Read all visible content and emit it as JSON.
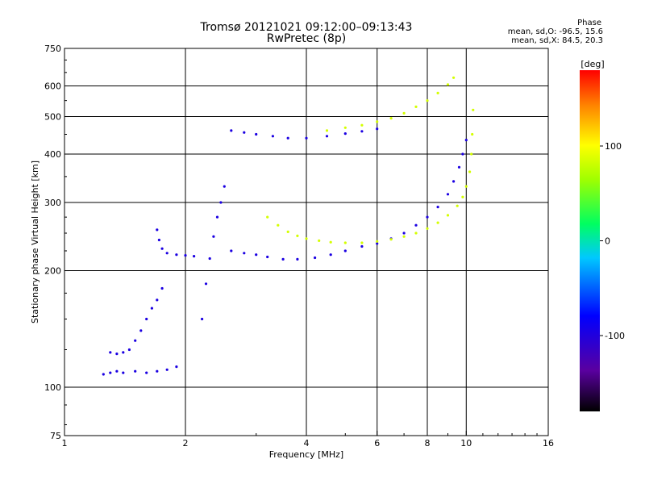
{
  "header": {
    "title_line1": "Tromsø 20121021 09:12:00–09:13:43",
    "title_line2": "RwPretec (8p)",
    "phase_title": "Phase",
    "phase_line1": "mean, sd,O:  -96.5, 15.6",
    "phase_line2": "mean, sd,X:   84.5, 20.3"
  },
  "chart_data": {
    "type": "scatter",
    "title": "Tromsø 20121021 09:12:00–09:13:43",
    "subtitle": "RwPretec (8p)",
    "xlabel": "Frequency [MHz]",
    "ylabel": "Stationary phase Virtual Height [km]",
    "xscale": "log",
    "yscale": "log",
    "xlim": [
      1,
      16
    ],
    "ylim": [
      75,
      750
    ],
    "x_ticks": [
      1,
      2,
      4,
      6,
      8,
      10,
      16
    ],
    "x_tick_labels": [
      "1",
      "2",
      "4",
      "6",
      "8",
      "10",
      "16"
    ],
    "x_gridlines": [
      2,
      4,
      6,
      8,
      10
    ],
    "y_ticks": [
      75,
      100,
      200,
      300,
      400,
      500,
      600,
      750
    ],
    "y_tick_labels": [
      "75",
      "100",
      "200",
      "300",
      "400",
      "500",
      "600",
      "750"
    ],
    "y_gridlines": [
      100,
      200,
      300,
      400,
      500,
      600
    ],
    "grid": true,
    "colorbar": {
      "label": "[deg]",
      "min": -180,
      "max": 180,
      "ticks": [
        -100,
        0,
        100
      ],
      "tick_labels": [
        "-100",
        "0",
        "100"
      ]
    },
    "series": [
      {
        "mode": "O",
        "color_phase": -96.5,
        "points": [
          [
            1.25,
            108
          ],
          [
            1.3,
            109
          ],
          [
            1.35,
            110
          ],
          [
            1.4,
            109
          ],
          [
            1.5,
            110
          ],
          [
            1.6,
            109
          ],
          [
            1.7,
            110
          ],
          [
            1.8,
            111
          ],
          [
            1.9,
            113
          ],
          [
            1.3,
            123
          ],
          [
            1.35,
            122
          ],
          [
            1.4,
            123
          ],
          [
            1.45,
            125
          ],
          [
            1.5,
            132
          ],
          [
            1.55,
            140
          ],
          [
            1.6,
            150
          ],
          [
            1.65,
            160
          ],
          [
            1.7,
            168
          ],
          [
            1.75,
            180
          ],
          [
            1.7,
            255
          ],
          [
            1.72,
            240
          ],
          [
            1.75,
            228
          ],
          [
            1.8,
            222
          ],
          [
            1.9,
            220
          ],
          [
            2.0,
            219
          ],
          [
            2.1,
            218
          ],
          [
            2.2,
            150
          ],
          [
            2.25,
            185
          ],
          [
            2.3,
            215
          ],
          [
            2.35,
            245
          ],
          [
            2.4,
            275
          ],
          [
            2.45,
            300
          ],
          [
            2.5,
            330
          ],
          [
            2.6,
            225
          ],
          [
            2.8,
            222
          ],
          [
            3.0,
            220
          ],
          [
            3.2,
            217
          ],
          [
            3.5,
            214
          ],
          [
            3.8,
            214
          ],
          [
            4.2,
            216
          ],
          [
            4.6,
            220
          ],
          [
            5.0,
            225
          ],
          [
            5.5,
            231
          ],
          [
            6.0,
            235
          ],
          [
            6.5,
            242
          ],
          [
            7.0,
            250
          ],
          [
            7.5,
            262
          ],
          [
            8.0,
            275
          ],
          [
            8.5,
            292
          ],
          [
            9.0,
            315
          ],
          [
            9.3,
            340
          ],
          [
            9.6,
            370
          ],
          [
            9.8,
            400
          ],
          [
            10.0,
            435
          ],
          [
            2.6,
            460
          ],
          [
            2.8,
            455
          ],
          [
            3.0,
            450
          ],
          [
            3.3,
            445
          ],
          [
            3.6,
            440
          ],
          [
            4.0,
            440
          ],
          [
            4.5,
            445
          ],
          [
            5.0,
            452
          ],
          [
            5.5,
            458
          ],
          [
            6.0,
            465
          ]
        ]
      },
      {
        "mode": "X",
        "color_phase": 84.5,
        "points": [
          [
            3.2,
            275
          ],
          [
            3.4,
            262
          ],
          [
            3.6,
            252
          ],
          [
            3.8,
            246
          ],
          [
            4.0,
            242
          ],
          [
            4.3,
            239
          ],
          [
            4.6,
            237
          ],
          [
            5.0,
            236
          ],
          [
            5.5,
            236
          ],
          [
            6.0,
            238
          ],
          [
            6.5,
            241
          ],
          [
            7.0,
            245
          ],
          [
            7.5,
            250
          ],
          [
            8.0,
            257
          ],
          [
            8.5,
            266
          ],
          [
            9.0,
            278
          ],
          [
            9.5,
            294
          ],
          [
            9.8,
            310
          ],
          [
            10.0,
            330
          ],
          [
            10.2,
            360
          ],
          [
            10.3,
            400
          ],
          [
            10.35,
            450
          ],
          [
            10.4,
            520
          ],
          [
            4.5,
            460
          ],
          [
            5.0,
            468
          ],
          [
            5.5,
            475
          ],
          [
            6.0,
            485
          ],
          [
            6.5,
            495
          ],
          [
            7.0,
            510
          ],
          [
            7.5,
            530
          ],
          [
            8.0,
            550
          ],
          [
            8.5,
            575
          ],
          [
            9.0,
            605
          ],
          [
            9.3,
            630
          ]
        ]
      }
    ]
  }
}
